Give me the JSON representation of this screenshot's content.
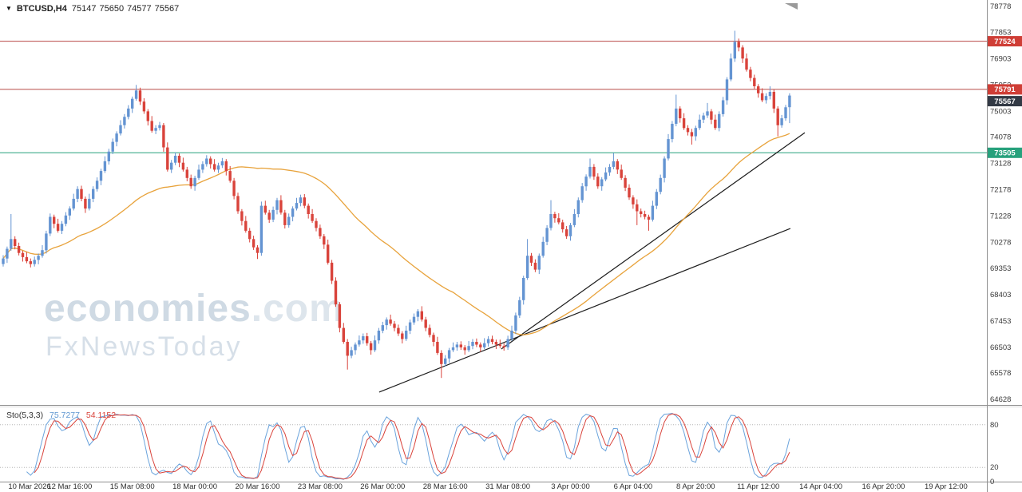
{
  "header": {
    "symbol": "BTCUSD,H4",
    "open": "75147",
    "high": "75650",
    "low": "74577",
    "close": "75567"
  },
  "watermark": {
    "brand": "economies",
    "tld": ".com",
    "line2": "FxNewsToday"
  },
  "colors": {
    "bull": "#6494d2",
    "bear": "#d9433b",
    "ma_line": "#e8a33c",
    "trendline": "#1c1c1c",
    "resistance_line": "#b94a48",
    "support_line": "#27a17c",
    "resistance_badge": "#cf3e36",
    "support_badge": "#27a17c",
    "current_badge": "#333a45",
    "stoch_main": "#6aa3dc",
    "stoch_signal": "#d9433b",
    "axis_text": "#3a3a3a"
  },
  "chart_data": {
    "type": "candlestick",
    "symbol": "BTCUSD",
    "timeframe": "H4",
    "title": "BTCUSD,H4 75147 75650 74577 75567",
    "price_axis": {
      "max_price": 78778,
      "min_price": 64628,
      "labels": [
        "78778",
        "77853",
        "76903",
        "75953",
        "75003",
        "74078",
        "73128",
        "72178",
        "71228",
        "70278",
        "69353",
        "68403",
        "67453",
        "66503",
        "65578",
        "64628"
      ]
    },
    "time_axis": {
      "labels": [
        "10 Mar 2026",
        "12 Mar 16:00",
        "15 Mar 08:00",
        "18 Mar 00:00",
        "20 Mar 16:00",
        "23 Mar 08:00",
        "26 Mar 00:00",
        "28 Mar 16:00",
        "31 Mar 08:00",
        "3 Apr 00:00",
        "6 Apr 04:00",
        "8 Apr 20:00",
        "11 Apr 12:00",
        "14 Apr 04:00",
        "16 Apr 20:00",
        "19 Apr 12:00"
      ]
    },
    "levels": [
      {
        "price": 77524,
        "kind": "resistance"
      },
      {
        "price": 75791,
        "kind": "resistance"
      },
      {
        "price": 73505,
        "kind": "support"
      }
    ],
    "current_price": 75567,
    "trendlines": [
      {
        "from_index": 96.1,
        "from_price": 64890,
        "to_index": 201.2,
        "to_price": 70780
      },
      {
        "from_index": 127.3,
        "from_price": 66440,
        "to_index": 204.9,
        "to_price": 74230
      }
    ],
    "ma": {
      "type": "sma",
      "period": 50
    },
    "indicator": {
      "name": "Stochastic Oscillator",
      "label": "Sto(5,3,3)",
      "main_value": "75.7277",
      "signal_value": "54.1152",
      "range": [
        0,
        100
      ],
      "levels": [
        80,
        20
      ],
      "axis_labels": [
        {
          "value": 80,
          "text": "80"
        },
        {
          "value": 20,
          "text": "20"
        },
        {
          "value": 0,
          "text": "0"
        }
      ]
    },
    "candles": [
      [
        69500,
        69820,
        69410,
        69700
      ],
      [
        69700,
        70130,
        69540,
        70050
      ],
      [
        70050,
        71300,
        69980,
        70400
      ],
      [
        70400,
        70500,
        70030,
        70150
      ],
      [
        70150,
        70270,
        69810,
        69900
      ],
      [
        69900,
        69980,
        69590,
        69750
      ],
      [
        69750,
        69930,
        69530,
        69600
      ],
      [
        69600,
        69700,
        69380,
        69500
      ],
      [
        69500,
        69770,
        69410,
        69650
      ],
      [
        69650,
        69880,
        69490,
        69800
      ],
      [
        69800,
        70180,
        69730,
        70000
      ],
      [
        70000,
        70700,
        69880,
        70600
      ],
      [
        70600,
        71320,
        70510,
        71200
      ],
      [
        71200,
        71280,
        70790,
        70950
      ],
      [
        70950,
        71130,
        70630,
        70700
      ],
      [
        70700,
        71050,
        70580,
        70950
      ],
      [
        70950,
        71370,
        70860,
        71250
      ],
      [
        71250,
        71580,
        71090,
        71500
      ],
      [
        71500,
        72030,
        71430,
        71850
      ],
      [
        71850,
        72300,
        71730,
        72200
      ],
      [
        72200,
        72320,
        71760,
        71850
      ],
      [
        71850,
        71930,
        71340,
        71500
      ],
      [
        71500,
        72030,
        71430,
        71850
      ],
      [
        71850,
        72300,
        71730,
        72200
      ],
      [
        72200,
        72620,
        72110,
        72500
      ],
      [
        72500,
        72930,
        72340,
        72850
      ],
      [
        72850,
        73380,
        72780,
        73200
      ],
      [
        73200,
        73650,
        73080,
        73550
      ],
      [
        73550,
        74020,
        73460,
        73900
      ],
      [
        73900,
        74280,
        73740,
        74200
      ],
      [
        74200,
        74680,
        74130,
        74500
      ],
      [
        74500,
        74900,
        74380,
        74800
      ],
      [
        74800,
        75220,
        74710,
        75100
      ],
      [
        75100,
        75530,
        74940,
        75450
      ],
      [
        75450,
        75950,
        75380,
        75750
      ],
      [
        75750,
        75850,
        75230,
        75350
      ],
      [
        75350,
        75470,
        74910,
        75000
      ],
      [
        75000,
        75080,
        74490,
        74650
      ],
      [
        74650,
        74830,
        74230,
        74300
      ],
      [
        74300,
        74500,
        74180,
        74400
      ],
      [
        74400,
        74620,
        74310,
        74500
      ],
      [
        74500,
        74580,
        73540,
        73700
      ],
      [
        73700,
        73880,
        72830,
        72900
      ],
      [
        72900,
        73250,
        72780,
        73150
      ],
      [
        73150,
        73520,
        73060,
        73400
      ],
      [
        73400,
        73480,
        72990,
        73150
      ],
      [
        73150,
        73330,
        72830,
        72900
      ],
      [
        72900,
        73000,
        72480,
        72600
      ],
      [
        72600,
        72720,
        72210,
        72300
      ],
      [
        72300,
        72680,
        72140,
        72600
      ],
      [
        72600,
        73080,
        72530,
        72900
      ],
      [
        72900,
        73200,
        72780,
        73100
      ],
      [
        73100,
        73420,
        73010,
        73300
      ],
      [
        73300,
        73380,
        72940,
        73100
      ],
      [
        73100,
        73280,
        72830,
        72900
      ],
      [
        72900,
        73150,
        72780,
        73050
      ],
      [
        73050,
        73320,
        72960,
        73200
      ],
      [
        73200,
        73280,
        72690,
        72850
      ],
      [
        72850,
        73030,
        72430,
        72500
      ],
      [
        72500,
        72600,
        71830,
        71950
      ],
      [
        71950,
        72070,
        71310,
        71400
      ],
      [
        71400,
        71480,
        70890,
        71050
      ],
      [
        71050,
        71230,
        70630,
        70700
      ],
      [
        70700,
        70800,
        70280,
        70400
      ],
      [
        70400,
        70520,
        70010,
        70100
      ],
      [
        70100,
        70180,
        69680,
        69900
      ],
      [
        69900,
        71750,
        69800,
        71600
      ],
      [
        71600,
        71780,
        71280,
        71350
      ],
      [
        71350,
        71450,
        70980,
        71100
      ],
      [
        71100,
        71570,
        71010,
        71450
      ],
      [
        71450,
        71880,
        71290,
        71800
      ],
      [
        71800,
        71980,
        71280,
        71350
      ],
      [
        71350,
        71450,
        70780,
        70900
      ],
      [
        70900,
        71320,
        70810,
        71200
      ],
      [
        71200,
        71580,
        71040,
        71500
      ],
      [
        71500,
        71880,
        71430,
        71700
      ],
      [
        71700,
        72000,
        71580,
        71900
      ],
      [
        71900,
        72020,
        71510,
        71600
      ],
      [
        71600,
        71680,
        71140,
        71300
      ],
      [
        71300,
        71480,
        70980,
        71050
      ],
      [
        71050,
        71150,
        70680,
        70800
      ],
      [
        70800,
        70920,
        70410,
        70500
      ],
      [
        70500,
        70580,
        70040,
        70200
      ],
      [
        70200,
        70380,
        69480,
        69550
      ],
      [
        69550,
        69650,
        68780,
        68900
      ],
      [
        68900,
        69020,
        67960,
        68050
      ],
      [
        68050,
        68130,
        67040,
        67200
      ],
      [
        67200,
        67380,
        66630,
        66700
      ],
      [
        66700,
        66800,
        65700,
        66200
      ],
      [
        66200,
        66520,
        66110,
        66400
      ],
      [
        66400,
        66680,
        66240,
        66600
      ],
      [
        66600,
        66930,
        66530,
        66750
      ],
      [
        66750,
        67000,
        66630,
        66900
      ],
      [
        66900,
        67020,
        66560,
        66650
      ],
      [
        66650,
        66730,
        66240,
        66400
      ],
      [
        66400,
        66930,
        66330,
        66750
      ],
      [
        66750,
        67200,
        66630,
        67100
      ],
      [
        67100,
        67420,
        67010,
        67300
      ],
      [
        67300,
        67580,
        67140,
        67500
      ],
      [
        67500,
        67680,
        67280,
        67350
      ],
      [
        67350,
        67450,
        67080,
        67200
      ],
      [
        67200,
        67320,
        66910,
        67000
      ],
      [
        67000,
        67080,
        66640,
        66800
      ],
      [
        66800,
        67280,
        66730,
        67100
      ],
      [
        67100,
        67500,
        66980,
        67400
      ],
      [
        67400,
        67720,
        67310,
        67600
      ],
      [
        67600,
        67880,
        67440,
        67800
      ],
      [
        67800,
        67980,
        67430,
        67500
      ],
      [
        67500,
        67600,
        67080,
        67200
      ],
      [
        67200,
        67320,
        66860,
        66950
      ],
      [
        66950,
        67030,
        66540,
        66700
      ],
      [
        66700,
        66880,
        66230,
        66300
      ],
      [
        66300,
        66400,
        65400,
        65900
      ],
      [
        65900,
        66220,
        65810,
        66100
      ],
      [
        66100,
        66480,
        65940,
        66400
      ],
      [
        66400,
        66680,
        66330,
        66500
      ],
      [
        66500,
        66700,
        66380,
        66600
      ],
      [
        66600,
        66720,
        66410,
        66500
      ],
      [
        66500,
        66580,
        66240,
        66400
      ],
      [
        66400,
        66730,
        66330,
        66550
      ],
      [
        66550,
        66800,
        66430,
        66700
      ],
      [
        66700,
        66820,
        66510,
        66600
      ],
      [
        66600,
        66680,
        66340,
        66500
      ],
      [
        66500,
        66830,
        66430,
        66650
      ],
      [
        66650,
        66900,
        66530,
        66800
      ],
      [
        66800,
        66920,
        66610,
        66700
      ],
      [
        66700,
        66780,
        66440,
        66600
      ],
      [
        66600,
        66780,
        66480,
        66550
      ],
      [
        66550,
        66650,
        66380,
        66500
      ],
      [
        66500,
        66920,
        66410,
        66800
      ],
      [
        66800,
        67280,
        66730,
        67100
      ],
      [
        67100,
        67750,
        66980,
        67650
      ],
      [
        67650,
        68320,
        67560,
        68200
      ],
      [
        68200,
        69080,
        68040,
        69000
      ],
      [
        69000,
        70400,
        68930,
        69800
      ],
      [
        69800,
        69900,
        69430,
        69550
      ],
      [
        69550,
        69670,
        69210,
        69300
      ],
      [
        69300,
        69880,
        69140,
        69800
      ],
      [
        69800,
        70480,
        69730,
        70300
      ],
      [
        70300,
        70900,
        70180,
        70800
      ],
      [
        70800,
        71800,
        70710,
        71300
      ],
      [
        71300,
        71380,
        70990,
        71150
      ],
      [
        71150,
        71330,
        70930,
        71000
      ],
      [
        71000,
        71100,
        70630,
        70750
      ],
      [
        70750,
        70870,
        70410,
        70500
      ],
      [
        70500,
        70980,
        70340,
        70900
      ],
      [
        70900,
        71480,
        70830,
        71300
      ],
      [
        71300,
        71900,
        71180,
        71800
      ],
      [
        71800,
        72420,
        71710,
        72300
      ],
      [
        72300,
        72730,
        72140,
        72650
      ],
      [
        72650,
        73300,
        72580,
        73000
      ],
      [
        73000,
        73100,
        72530,
        72650
      ],
      [
        72650,
        72770,
        72210,
        72300
      ],
      [
        72300,
        72630,
        72140,
        72550
      ],
      [
        72550,
        72980,
        72480,
        72800
      ],
      [
        72800,
        73100,
        72680,
        73000
      ],
      [
        73000,
        73500,
        72910,
        73200
      ],
      [
        73200,
        73280,
        72740,
        72900
      ],
      [
        72900,
        73080,
        72530,
        72600
      ],
      [
        72600,
        72700,
        72130,
        72250
      ],
      [
        72250,
        72370,
        71810,
        71900
      ],
      [
        71900,
        71980,
        71490,
        71650
      ],
      [
        71650,
        71830,
        70900,
        71400
      ],
      [
        71400,
        71500,
        71180,
        71300
      ],
      [
        71300,
        71420,
        71110,
        71200
      ],
      [
        71200,
        71280,
        70700,
        71100
      ],
      [
        71100,
        71780,
        71030,
        71600
      ],
      [
        71600,
        72200,
        71480,
        72100
      ],
      [
        72100,
        72720,
        72010,
        72600
      ],
      [
        72600,
        73380,
        72440,
        73300
      ],
      [
        73300,
        74180,
        73230,
        74000
      ],
      [
        74000,
        74650,
        73880,
        74550
      ],
      [
        74550,
        75600,
        74460,
        75100
      ],
      [
        75100,
        75180,
        74590,
        74750
      ],
      [
        74750,
        74930,
        74330,
        74400
      ],
      [
        74400,
        74500,
        74130,
        74250
      ],
      [
        74250,
        74370,
        73800,
        74100
      ],
      [
        74100,
        74480,
        73940,
        74400
      ],
      [
        74400,
        74880,
        74330,
        74700
      ],
      [
        74700,
        74950,
        74580,
        74850
      ],
      [
        74850,
        75300,
        74760,
        75000
      ],
      [
        75000,
        75080,
        74540,
        74700
      ],
      [
        74700,
        74880,
        74330,
        74400
      ],
      [
        74400,
        75000,
        74280,
        74900
      ],
      [
        74900,
        75520,
        74810,
        75400
      ],
      [
        75400,
        76230,
        75240,
        76150
      ],
      [
        76150,
        77080,
        76080,
        76900
      ],
      [
        76900,
        77900,
        76780,
        77500
      ],
      [
        77500,
        77620,
        77160,
        77300
      ],
      [
        77300,
        77380,
        76740,
        76900
      ],
      [
        76900,
        77080,
        76430,
        76500
      ],
      [
        76500,
        76600,
        76080,
        76200
      ],
      [
        76200,
        76320,
        75810,
        75900
      ],
      [
        75900,
        75980,
        75490,
        75650
      ],
      [
        75650,
        75830,
        75330,
        75400
      ],
      [
        75400,
        75650,
        75280,
        75550
      ],
      [
        75550,
        75900,
        75430,
        75700
      ],
      [
        75700,
        75780,
        74940,
        75100
      ],
      [
        75100,
        75180,
        74100,
        74500
      ],
      [
        74500,
        74870,
        74410,
        74750
      ],
      [
        74750,
        75230,
        74660,
        75147
      ],
      [
        75147,
        75650,
        74577,
        75567
      ]
    ]
  }
}
